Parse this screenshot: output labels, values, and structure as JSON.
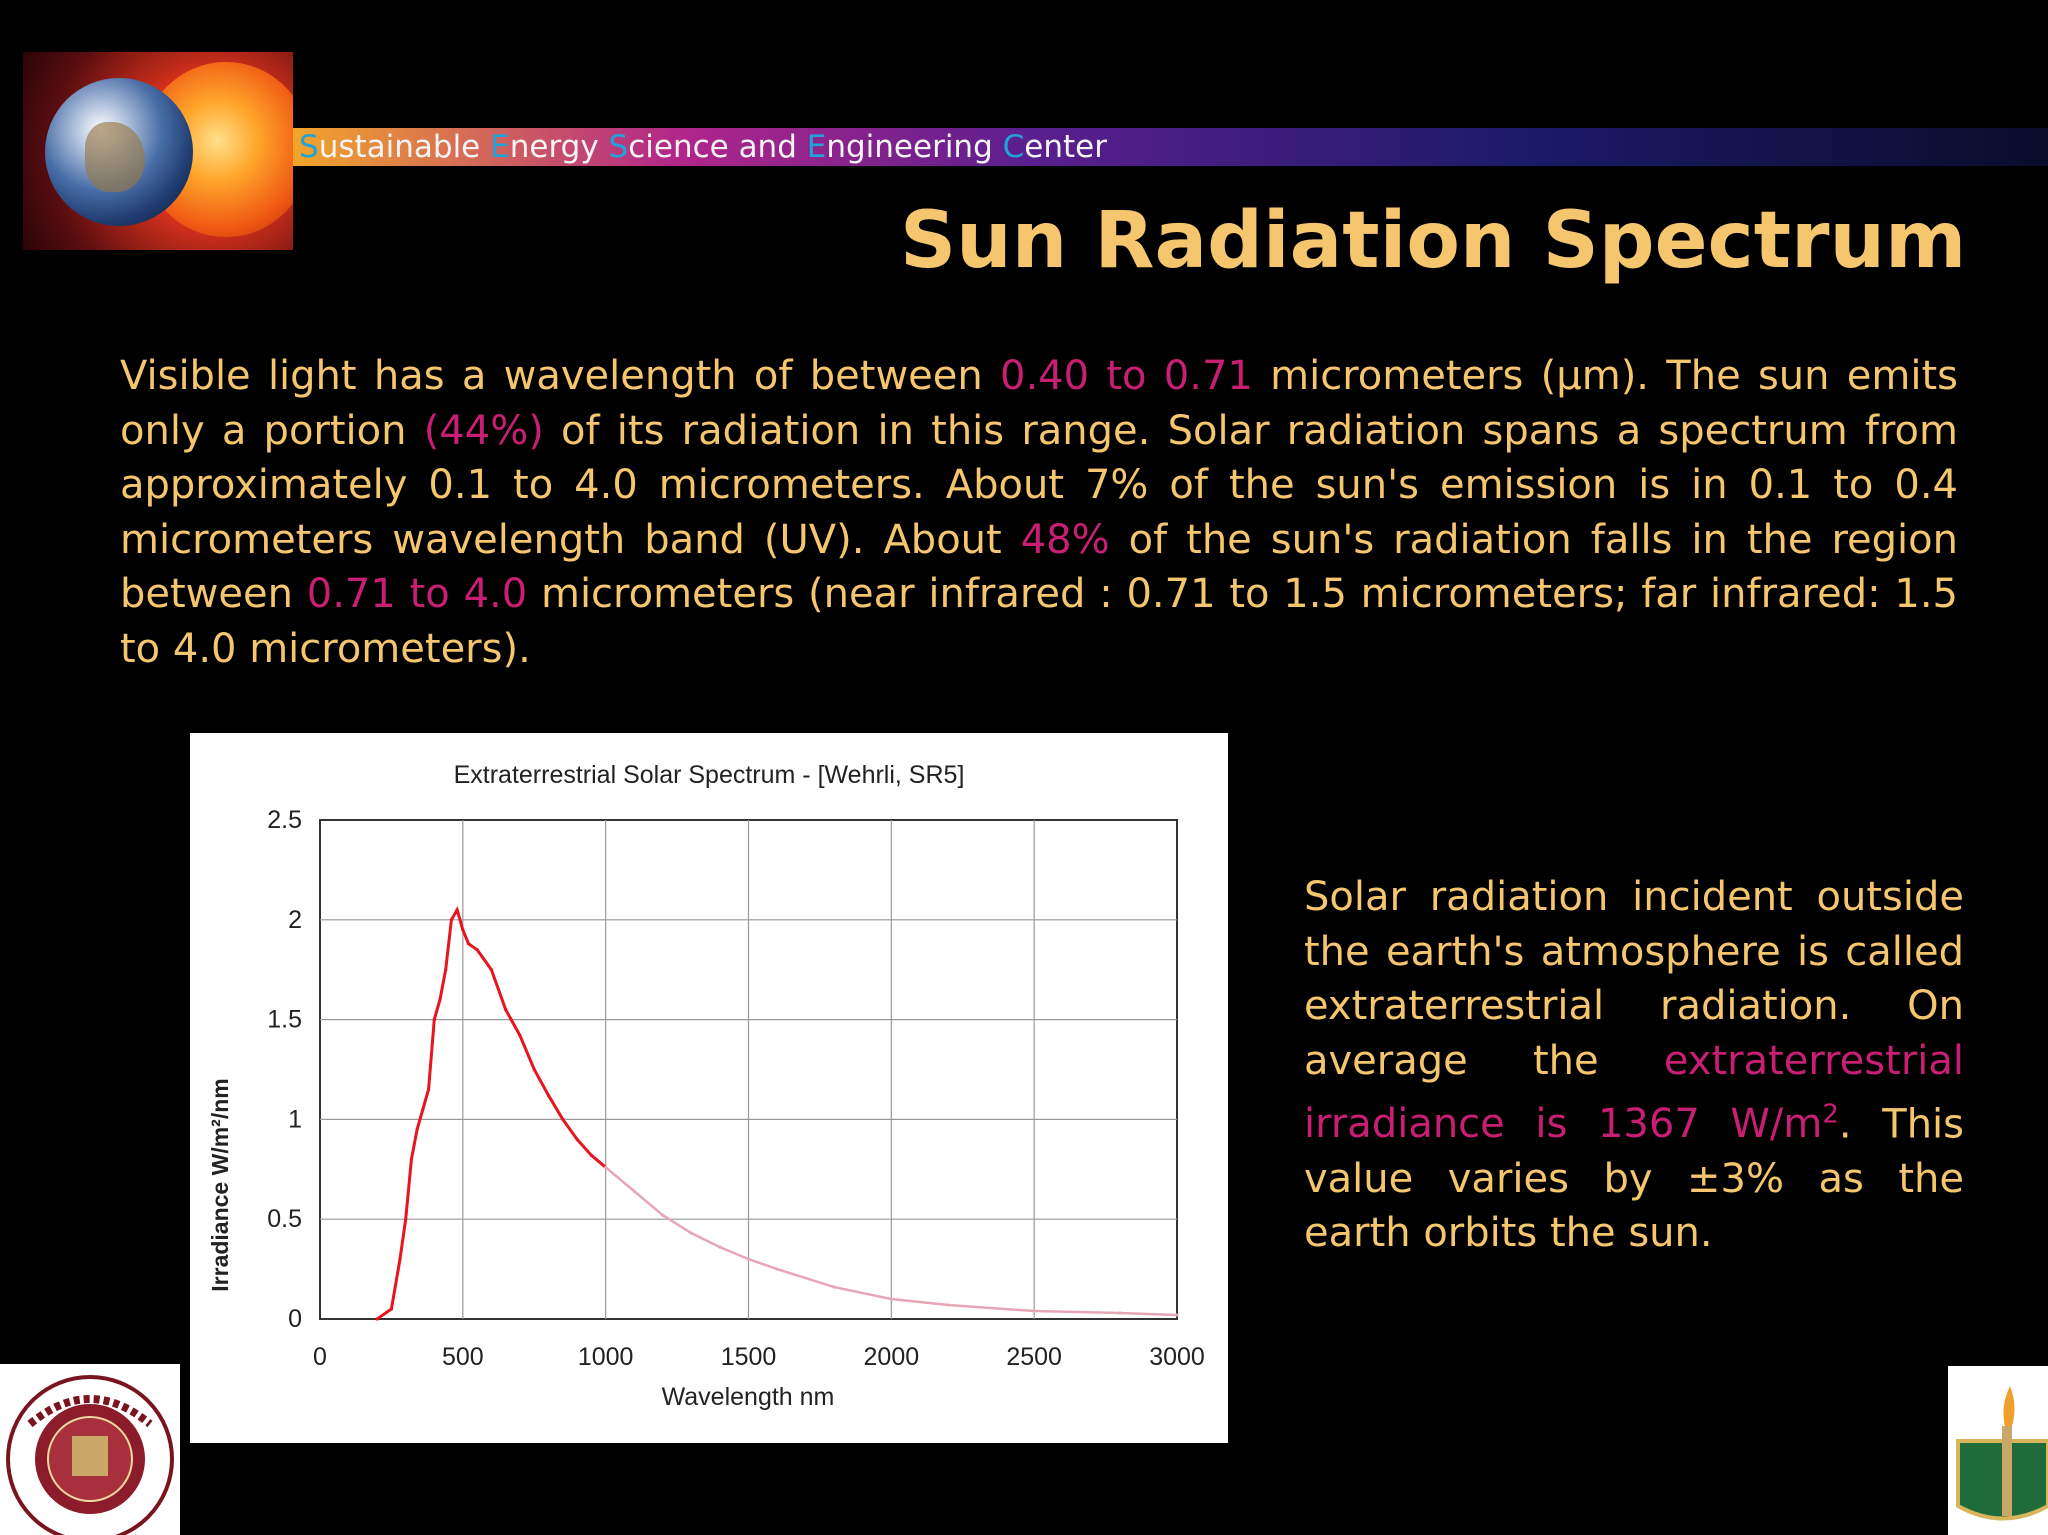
{
  "header": {
    "banner_parts": [
      {
        "text": "S",
        "cap": true
      },
      {
        "text": "ustainable ",
        "cap": false
      },
      {
        "text": "E",
        "cap": true
      },
      {
        "text": "nergy ",
        "cap": false
      },
      {
        "text": "S",
        "cap": true
      },
      {
        "text": "cience and ",
        "cap": false
      },
      {
        "text": "E",
        "cap": true
      },
      {
        "text": "ngineering ",
        "cap": false
      },
      {
        "text": "C",
        "cap": true
      },
      {
        "text": "enter",
        "cap": false
      }
    ]
  },
  "slide": {
    "title": "Sun Radiation Spectrum",
    "body": [
      {
        "text": "Visible light has a wavelength of between ",
        "hl": false
      },
      {
        "text": "0.40 to 0.71",
        "hl": true
      },
      {
        "text": " micrometers (µm). The sun emits only a portion ",
        "hl": false
      },
      {
        "text": "(44%)",
        "hl": true
      },
      {
        "text": " of its radiation in this range. Solar radiation spans a spectrum from approximately 0.1 to 4.0 micrometers. About 7% of the sun's emission is in 0.1 to 0.4 micrometers wavelength band (UV). About ",
        "hl": false
      },
      {
        "text": "48%",
        "hl": true
      },
      {
        "text": " of the sun's radiation falls in the region between ",
        "hl": false
      },
      {
        "text": "0.71 to 4.0",
        "hl": true
      },
      {
        "text": " micrometers (near infrared : 0.71 to 1.5 micrometers; far infrared: 1.5 to 4.0 micrometers).",
        "hl": false
      }
    ],
    "side": {
      "p1": "Solar radiation incident outside the earth's atmosphere is called extraterrestrial radiation. On average the ",
      "hl1": "extraterrestrial irradiance is 1367 W/m",
      "hl_sup": "2",
      "p2": ". This value varies by ±3% as the earth orbits the sun."
    }
  },
  "chart_data": {
    "type": "line",
    "title": "Extraterrestrial Solar Spectrum - [Wehrli, SR5]",
    "xlabel": "Wavelength nm",
    "ylabel": "Irradiance W/m²/nm",
    "xlim": [
      0,
      3000
    ],
    "ylim": [
      0,
      2.5
    ],
    "xticks": [
      "0",
      "500",
      "1000",
      "1500",
      "2000",
      "2500",
      "3000"
    ],
    "yticks": [
      "0",
      "0.5",
      "1",
      "1.5",
      "2",
      "2.5"
    ],
    "grid": true,
    "series_color": "#e8141e",
    "tail_color": "#e6a6b6",
    "x": [
      200,
      250,
      280,
      300,
      320,
      340,
      360,
      380,
      400,
      420,
      440,
      460,
      480,
      500,
      520,
      550,
      600,
      650,
      700,
      750,
      800,
      850,
      900,
      950,
      1000,
      1100,
      1200,
      1300,
      1400,
      1500,
      1600,
      1800,
      2000,
      2200,
      2500,
      2800,
      3000
    ],
    "y": [
      0.0,
      0.05,
      0.3,
      0.5,
      0.8,
      0.95,
      1.05,
      1.15,
      1.5,
      1.6,
      1.75,
      2.0,
      2.05,
      1.95,
      1.88,
      1.85,
      1.75,
      1.55,
      1.42,
      1.25,
      1.12,
      1.0,
      0.9,
      0.82,
      0.76,
      0.64,
      0.52,
      0.43,
      0.36,
      0.3,
      0.25,
      0.16,
      0.1,
      0.07,
      0.04,
      0.03,
      0.02
    ]
  }
}
